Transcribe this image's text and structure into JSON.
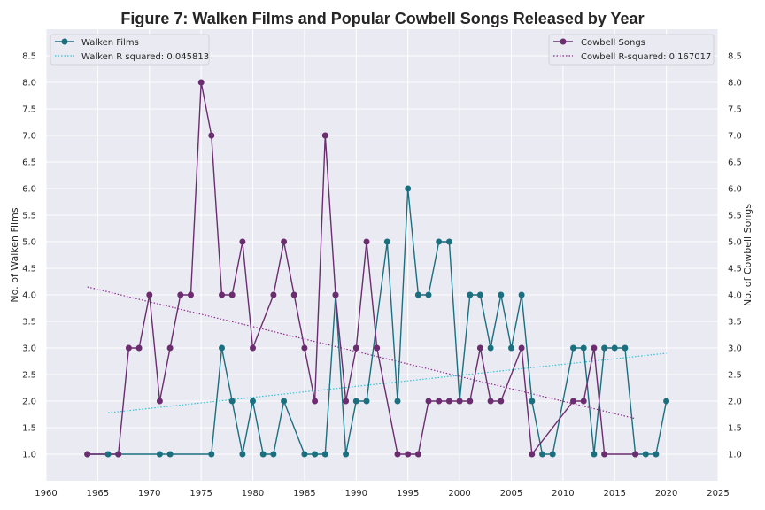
{
  "chart_data": {
    "type": "line",
    "title": "Figure 7: Walken Films and Popular Cowbell Songs Released by Year",
    "xlabel": "",
    "ylabel_left": "No. of Walken Films",
    "ylabel_right": "No. of Cowbell Songs",
    "xlim": [
      1960,
      2025
    ],
    "ylim": [
      0.5,
      9.0
    ],
    "x_ticks": [
      1960,
      1965,
      1970,
      1975,
      1980,
      1985,
      1990,
      1995,
      2000,
      2005,
      2010,
      2015,
      2020,
      2025
    ],
    "y_ticks": [
      "1.0",
      "1.5",
      "2.0",
      "2.5",
      "3.0",
      "3.5",
      "4.0",
      "4.5",
      "5.0",
      "5.5",
      "6.0",
      "6.5",
      "7.0",
      "7.5",
      "8.0",
      "8.5"
    ],
    "grid": true,
    "series": [
      {
        "name": "Walken Films",
        "axis": "left",
        "color": "#1b6f7f",
        "x": [
          1964,
          1966,
          1967,
          1971,
          1972,
          1976,
          1977,
          1978,
          1979,
          1980,
          1981,
          1982,
          1983,
          1985,
          1986,
          1987,
          1988,
          1989,
          1990,
          1991,
          1993,
          1994,
          1995,
          1996,
          1997,
          1998,
          1999,
          2000,
          2001,
          2002,
          2003,
          2004,
          2005,
          2006,
          2007,
          2008,
          2009,
          2011,
          2012,
          2013,
          2014,
          2015,
          2016,
          2017,
          2018,
          2019,
          2020
        ],
        "y": [
          1,
          1,
          1,
          1,
          1,
          1,
          3,
          2,
          1,
          2,
          1,
          1,
          2,
          1,
          1,
          1,
          4,
          1,
          2,
          2,
          5,
          2,
          6,
          4,
          4,
          5,
          5,
          2,
          4,
          4,
          3,
          4,
          3,
          4,
          2,
          1,
          1,
          3,
          3,
          1,
          3,
          3,
          3,
          1,
          1,
          1,
          2
        ]
      },
      {
        "name": "Cowbell Songs",
        "axis": "right",
        "color": "#6b2d6f",
        "x": [
          1964,
          1967,
          1968,
          1969,
          1970,
          1971,
          1972,
          1973,
          1974,
          1975,
          1976,
          1977,
          1978,
          1979,
          1980,
          1982,
          1983,
          1984,
          1985,
          1986,
          1987,
          1988,
          1989,
          1990,
          1991,
          1992,
          1994,
          1995,
          1996,
          1997,
          1998,
          1999,
          2000,
          2001,
          2002,
          2003,
          2004,
          2006,
          2007,
          2011,
          2012,
          2013,
          2014,
          2017
        ],
        "y": [
          1,
          1,
          3,
          3,
          4,
          2,
          3,
          4,
          4,
          8,
          7,
          4,
          4,
          5,
          3,
          4,
          5,
          4,
          3,
          2,
          7,
          4,
          2,
          3,
          5,
          3,
          1,
          1,
          1,
          2,
          2,
          2,
          2,
          2,
          3,
          2,
          2,
          3,
          1,
          2,
          2,
          3,
          1,
          1
        ]
      }
    ],
    "trendlines": [
      {
        "name": "Walken R squared: 0.045813",
        "axis": "left",
        "color": "#2ec4d6",
        "x": [
          1966,
          2020
        ],
        "y": [
          1.78,
          2.9
        ]
      },
      {
        "name": "Cowbell R-squared: 0.167017",
        "axis": "right",
        "color": "#8e2a8e",
        "x": [
          1964,
          2017
        ],
        "y": [
          4.15,
          1.67
        ]
      }
    ],
    "legend_left": {
      "placement": "top-left",
      "entries": [
        "Walken Films",
        "Walken R squared: 0.045813"
      ]
    },
    "legend_right": {
      "placement": "top-right",
      "entries": [
        "Cowbell Songs",
        "Cowbell R-squared: 0.167017"
      ]
    }
  }
}
